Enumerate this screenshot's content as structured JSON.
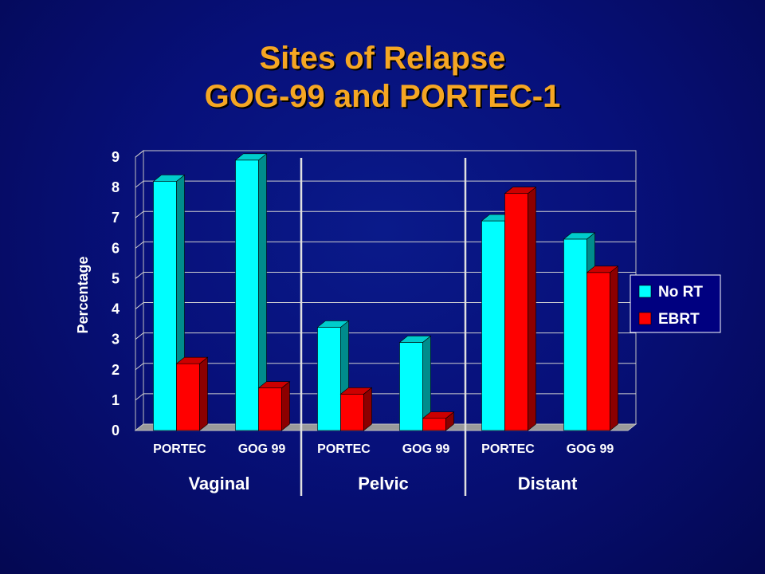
{
  "slide": {
    "title_line1": "Sites of Relapse",
    "title_line2": "GOG-99 and PORTEC-1"
  },
  "colors": {
    "title": "#f5a623",
    "no_rt": "#00ffff",
    "ebrt": "#ff0000",
    "background": "#07107a"
  },
  "chart_data": {
    "type": "bar",
    "ylabel": "Percentage",
    "ylim": [
      0,
      9
    ],
    "yticks": [
      0,
      1,
      2,
      3,
      4,
      5,
      6,
      7,
      8,
      9
    ],
    "grid": true,
    "legend_position": "right",
    "categories": [
      "PORTEC",
      "GOG 99",
      "PORTEC",
      "GOG 99",
      "PORTEC",
      "GOG 99"
    ],
    "groups": [
      {
        "label": "Vaginal",
        "categories": [
          "PORTEC",
          "GOG 99"
        ]
      },
      {
        "label": "Pelvic",
        "categories": [
          "PORTEC",
          "GOG 99"
        ]
      },
      {
        "label": "Distant",
        "categories": [
          "PORTEC",
          "GOG 99"
        ]
      }
    ],
    "series": [
      {
        "name": "No RT",
        "color": "#00ffff",
        "values": [
          8.2,
          8.9,
          3.4,
          2.9,
          6.9,
          6.3
        ]
      },
      {
        "name": "EBRT",
        "color": "#ff0000",
        "values": [
          2.2,
          1.4,
          1.2,
          0.4,
          7.8,
          5.2
        ]
      }
    ]
  }
}
